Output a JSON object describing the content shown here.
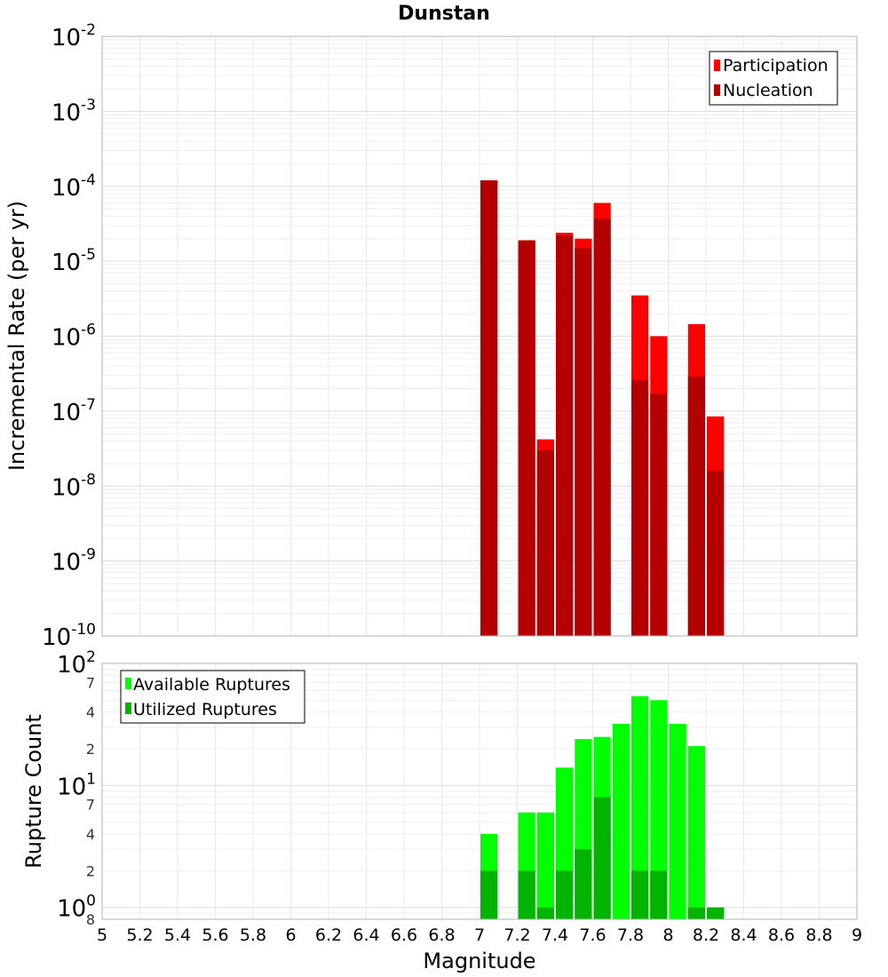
{
  "chart_data": [
    {
      "type": "bar",
      "title": "Dunstan",
      "ylabel": "Incremental Rate (per yr)",
      "xlabel": "",
      "y_scale": "log",
      "xlim": [
        5,
        9
      ],
      "ylim": [
        1e-10,
        0.01
      ],
      "y_ticks": [
        {
          "base": "10",
          "exp": "-10",
          "value": 1e-10
        },
        {
          "base": "10",
          "exp": "-9",
          "value": 1e-09
        },
        {
          "base": "10",
          "exp": "-8",
          "value": 1e-08
        },
        {
          "base": "10",
          "exp": "-7",
          "value": 1e-07
        },
        {
          "base": "10",
          "exp": "-6",
          "value": 1e-06
        },
        {
          "base": "10",
          "exp": "-5",
          "value": 1e-05
        },
        {
          "base": "10",
          "exp": "-4",
          "value": 0.0001
        },
        {
          "base": "10",
          "exp": "-3",
          "value": 0.001
        },
        {
          "base": "10",
          "exp": "-2",
          "value": 0.01
        }
      ],
      "grid": true,
      "legend_position": "top-right",
      "bar_width": 0.1,
      "series": [
        {
          "name": "Participation",
          "color": "#ff0000",
          "x": [
            7.05,
            7.25,
            7.35,
            7.45,
            7.55,
            7.65,
            7.85,
            7.95,
            8.15,
            8.25
          ],
          "values": [
            0.00012,
            1.9e-05,
            4.2e-08,
            2.4e-05,
            2e-05,
            6e-05,
            3.5e-06,
            1e-06,
            1.45e-06,
            8.5e-08
          ]
        },
        {
          "name": "Nucleation",
          "color": "#b40000",
          "x": [
            7.05,
            7.25,
            7.35,
            7.45,
            7.55,
            7.65,
            7.85,
            7.95,
            8.15,
            8.25
          ],
          "values": [
            0.00012,
            1.9e-05,
            3e-08,
            2.2e-05,
            1.5e-05,
            3.7e-05,
            2.6e-07,
            1.7e-07,
            2.9e-07,
            1.6e-08
          ]
        }
      ]
    },
    {
      "type": "bar",
      "title": "",
      "ylabel": "Rupture Count",
      "xlabel": "Magnitude",
      "y_scale": "log",
      "xlim": [
        5,
        9
      ],
      "ylim": [
        0.8,
        100
      ],
      "x_tick_labels": [
        "5",
        "5.2",
        "5.4",
        "5.6",
        "5.8",
        "6",
        "6.2",
        "6.4",
        "6.6",
        "6.8",
        "7",
        "7.2",
        "7.4",
        "7.6",
        "7.8",
        "8",
        "8.2",
        "8.4",
        "8.6",
        "8.8",
        "9"
      ],
      "y_ticks": [
        {
          "base": "10",
          "exp": "0",
          "value": 1
        },
        {
          "base": "10",
          "exp": "1",
          "value": 10
        },
        {
          "base": "10",
          "exp": "2",
          "value": 100
        }
      ],
      "y_minor_labels": [
        {
          "label": "8",
          "value": 0.8
        },
        {
          "label": "2",
          "value": 2
        },
        {
          "label": "4",
          "value": 4
        },
        {
          "label": "7",
          "value": 7
        },
        {
          "label": "2",
          "value": 20
        },
        {
          "label": "4",
          "value": 40
        },
        {
          "label": "7",
          "value": 70
        }
      ],
      "grid": true,
      "legend_position": "top-left",
      "bar_width": 0.1,
      "series": [
        {
          "name": "Available Ruptures",
          "color": "#00ff00",
          "x": [
            7.05,
            7.25,
            7.35,
            7.45,
            7.55,
            7.65,
            7.75,
            7.85,
            7.95,
            8.05,
            8.15,
            8.25
          ],
          "values": [
            4,
            6,
            6,
            14,
            24,
            25,
            32,
            54,
            50,
            32,
            21,
            1
          ]
        },
        {
          "name": "Utilized Ruptures",
          "color": "#00b400",
          "x": [
            7.05,
            7.25,
            7.35,
            7.45,
            7.55,
            7.65,
            7.85,
            7.95,
            8.15,
            8.25
          ],
          "values": [
            2,
            2,
            1,
            2,
            3,
            8,
            2,
            2,
            1,
            1
          ]
        }
      ]
    }
  ]
}
